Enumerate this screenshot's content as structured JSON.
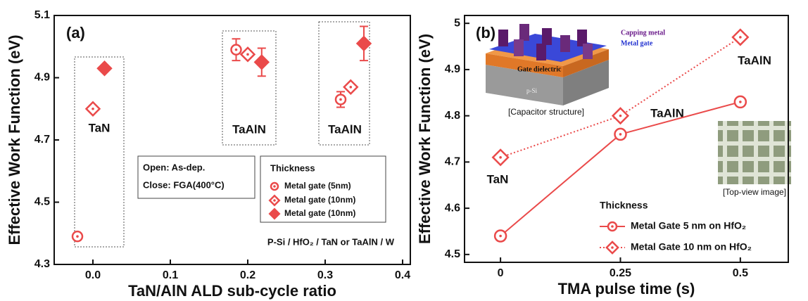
{
  "chart_data": [
    {
      "type": "scatter",
      "panel_label": "(a)",
      "x_label": "TaN/AlN ALD sub-cycle ratio",
      "y_label": "Effective Work Function (eV)",
      "xlim": [
        -0.05,
        0.41
      ],
      "ylim": [
        4.3,
        5.1
      ],
      "xticks": [
        {
          "value": 0,
          "label": "0.0"
        },
        0.1,
        0.2,
        0.3,
        0.4
      ],
      "yticks": [
        4.3,
        4.5,
        4.7,
        4.9,
        5.1
      ],
      "series": [
        {
          "name": "Metal gate (5nm)",
          "color": "#ea4a4a",
          "marker": "circle",
          "filled": false,
          "x": [
            -0.02,
            0.185,
            0.32
          ],
          "values": [
            4.39,
            4.99,
            4.83
          ],
          "errors": [
            null,
            0.035,
            0.025
          ]
        },
        {
          "name": "Metal gate (10nm)",
          "color": "#ea4a4a",
          "marker": "diamond",
          "filled": false,
          "x": [
            0.0,
            0.2,
            0.333
          ],
          "values": [
            4.8,
            4.975,
            4.87
          ],
          "errors": [
            null,
            null,
            null
          ]
        },
        {
          "name": "Metal gate (10nm)",
          "color": "#ea4a4a",
          "marker": "diamond",
          "filled": true,
          "x": [
            0.015,
            0.218,
            0.35
          ],
          "values": [
            4.93,
            4.95,
            5.01
          ],
          "errors": [
            null,
            0.045,
            0.055
          ]
        }
      ],
      "legend_title": "Thickness",
      "annotations": [
        "TaN",
        "TaAlN",
        "TaAlN",
        "Open: As-dep.",
        "Close: FGA(400°C)",
        "P-Si / HfO₂ / TaN or TaAlN / W"
      ]
    },
    {
      "type": "line",
      "panel_label": "(b)",
      "x_label": "TMA pulse time (s)",
      "y_label": "Effective Work Function (eV)",
      "xlim": [
        -0.075,
        0.6
      ],
      "ylim": [
        4.483,
        5.017
      ],
      "xticks": [
        0,
        0.25,
        0.5
      ],
      "yticks": [
        4.5,
        4.6,
        4.7,
        4.8,
        4.9,
        5.0
      ],
      "series": [
        {
          "name": "Metal Gate 5 nm on HfO₂",
          "color": "#ea4a4a",
          "marker": "circle",
          "linestyle": "solid",
          "x": [
            0,
            0.25,
            0.5
          ],
          "values": [
            4.54,
            4.76,
            4.83
          ]
        },
        {
          "name": "Metal Gate 10 nm on HfO₂",
          "color": "#ea4a4a",
          "marker": "diamond",
          "linestyle": "dotted",
          "x": [
            0,
            0.25,
            0.5
          ],
          "values": [
            4.71,
            4.8,
            4.97
          ]
        }
      ],
      "legend_title": "Thickness",
      "annotations": [
        "TaN",
        "TaAlN",
        "TaAlN",
        "Capping metal",
        "Metal gate",
        "Gate dielectric",
        "p-Si",
        "[Capacitor structure]",
        "[Top-view image]"
      ]
    }
  ]
}
